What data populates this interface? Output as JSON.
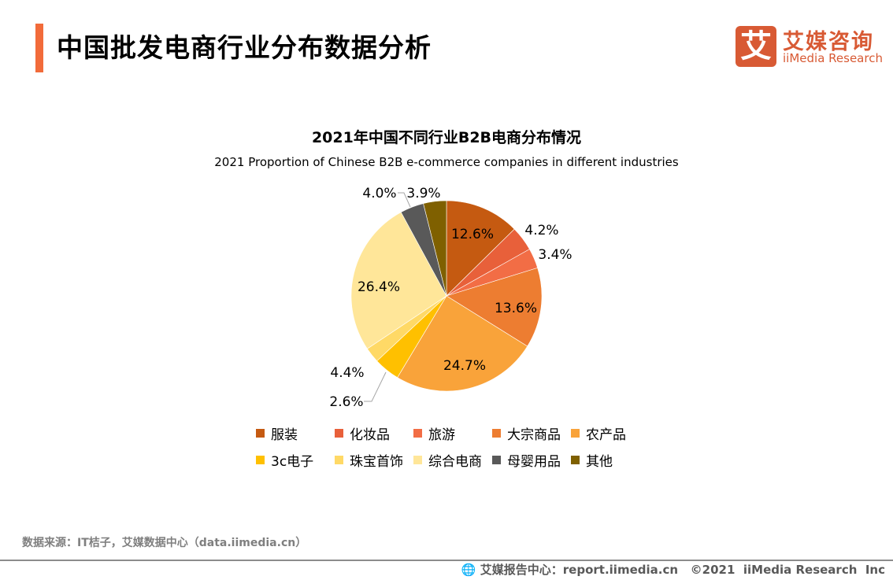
{
  "header": {
    "title": "中国批发电商行业分布数据分析",
    "accent": "#F26B3A"
  },
  "logo": {
    "glyph": "艾",
    "cn": "艾媒咨询",
    "en": "iiMedia Research"
  },
  "chart_data": {
    "type": "pie",
    "title": "2021年中国不同行业B2B电商分布情况",
    "subtitle": "2021 Proportion of Chinese B2B e-commerce companies in different industries",
    "legend_position": "bottom",
    "categories": [
      "服装",
      "化妆品",
      "旅游",
      "大宗商品",
      "农产品",
      "3c电子",
      "珠宝首饰",
      "综合电商",
      "母婴用品",
      "其他"
    ],
    "values": [
      12.6,
      4.2,
      3.4,
      13.6,
      24.7,
      4.4,
      2.6,
      26.4,
      4.0,
      3.9
    ],
    "labels": [
      "12.6%",
      "4.2%",
      "3.4%",
      "13.6%",
      "24.7%",
      "4.4%",
      "2.6%",
      "26.4%",
      "4.0%",
      "3.9%"
    ],
    "colors": [
      "#C55A11",
      "#E8603A",
      "#F26D45",
      "#ED7D31",
      "#F9A33A",
      "#FFC000",
      "#FFD966",
      "#FFE699",
      "#595959",
      "#7F6000"
    ]
  },
  "source": "数据来源：IT桔子，艾媒数据中心（data.iimedia.cn）",
  "footer": {
    "text": "艾媒报告中心：report.iimedia.cn   ©2021  iiMedia Research  Inc",
    "icon": "globe-icon"
  }
}
